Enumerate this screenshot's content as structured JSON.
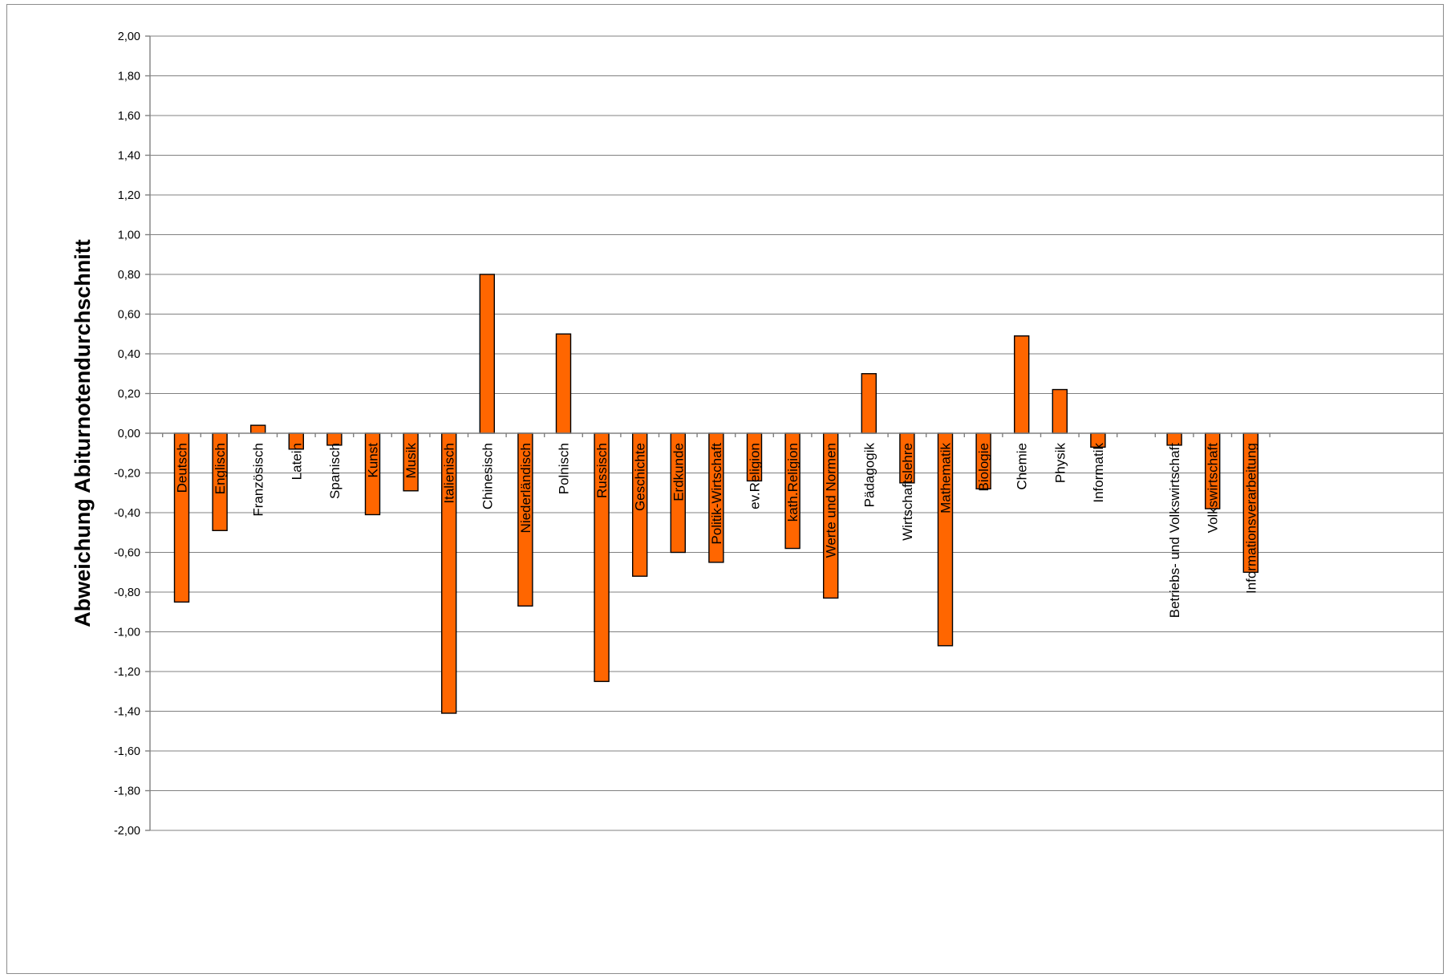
{
  "chart_data": {
    "type": "bar",
    "title": "",
    "xlabel": "",
    "ylabel": "Abweichung Abiturnotendurchschnitt",
    "ylim": [
      -2.0,
      2.0
    ],
    "ytick_step": 0.2,
    "ytick_labels": [
      "2,00",
      "1,80",
      "1,60",
      "1,40",
      "1,20",
      "1,00",
      "0,80",
      "0,60",
      "0,40",
      "0,20",
      "0,00",
      "-0,20",
      "-0,40",
      "-0,60",
      "-0,80",
      "-1,00",
      "-1,20",
      "-1,40",
      "-1,60",
      "-1,80",
      "-2,00"
    ],
    "grid": true,
    "legend": "none",
    "bar_color": "#FF6600",
    "categories": [
      "Deutsch",
      "Englisch",
      "Französisch",
      "Latein",
      "Spanisch",
      "Kunst",
      "Musik",
      "Italienisch",
      "Chinesisch",
      "Niederländisch",
      "Polnisch",
      "Russisch",
      "Geschichte",
      "Erdkunde",
      "Politik-Wirtschaft",
      "ev.Religion",
      "kath.Religion",
      "Werte und Normen",
      "Pädagogik",
      "Wirtschaftslehre",
      "Mathematik",
      "Biologie",
      "Chemie",
      "Physik",
      "Informatik",
      "",
      "Betriebs- und Volkswirtschaft",
      "Volkswirtschaft",
      "Informationsverarbeitung"
    ],
    "values": [
      -0.85,
      -0.49,
      0.04,
      -0.08,
      -0.06,
      -0.41,
      -0.29,
      -1.41,
      0.8,
      -0.87,
      0.5,
      -1.25,
      -0.72,
      -0.6,
      -0.65,
      -0.24,
      -0.58,
      -0.83,
      0.3,
      -0.25,
      -1.07,
      -0.28,
      0.49,
      0.22,
      -0.07,
      null,
      -0.06,
      -0.38,
      -0.7
    ]
  }
}
